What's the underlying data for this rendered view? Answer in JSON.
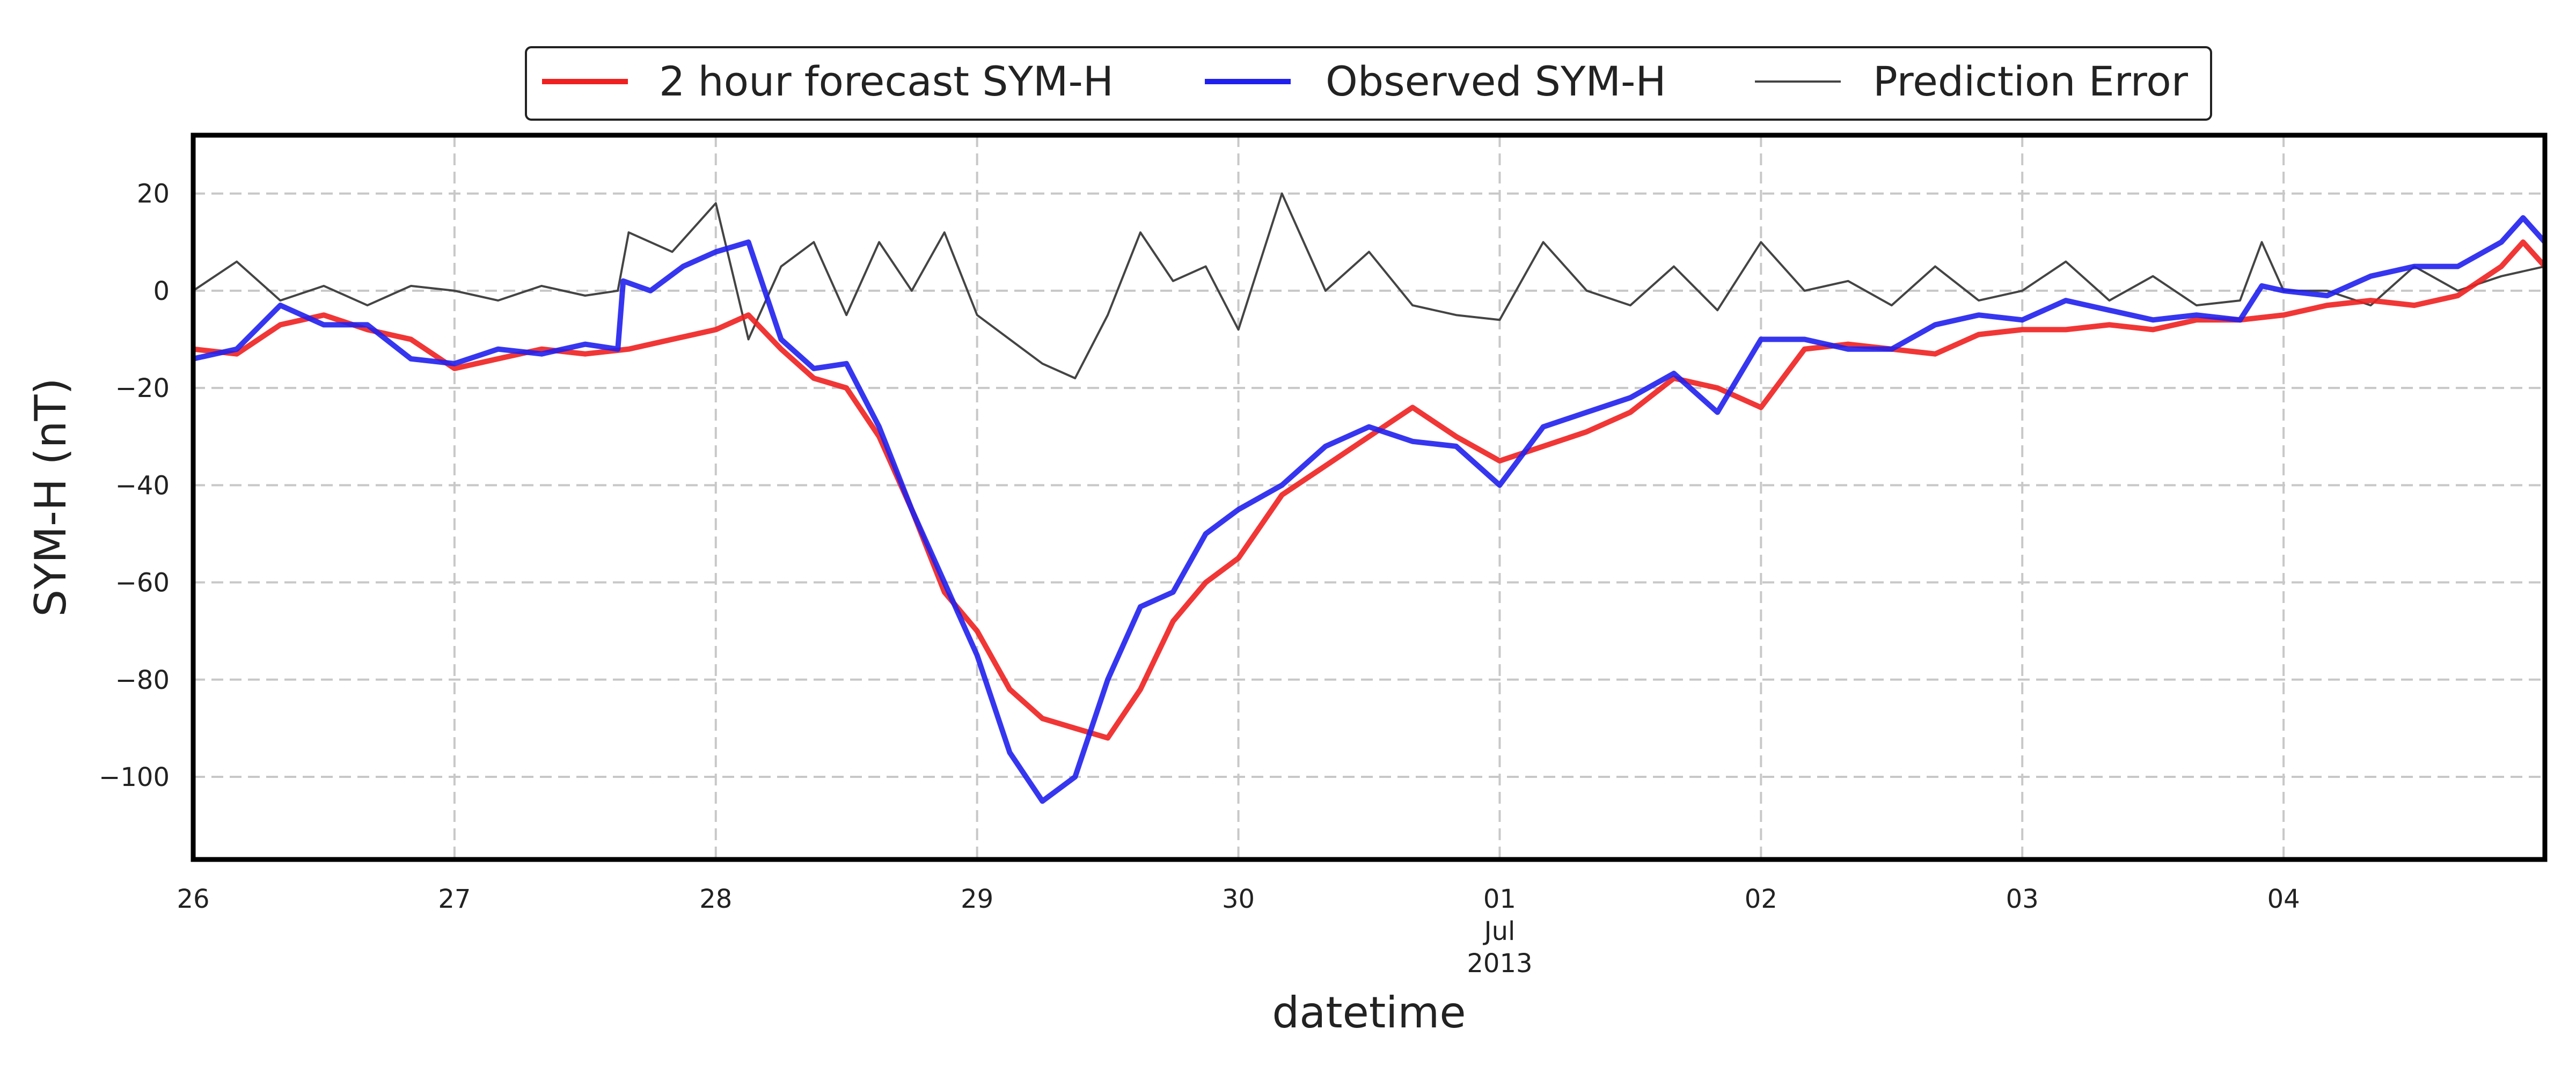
{
  "chart_data": {
    "type": "line",
    "title": "",
    "xlabel": "datetime",
    "ylabel": "SYM-H (nT)",
    "xlim": [
      "2013-06-26T00:00",
      "2013-07-05T00:00"
    ],
    "ylim": [
      -117,
      32
    ],
    "grid": true,
    "legend_position": "top-center",
    "x_ticks": [
      {
        "date": "2013-06-26",
        "label": "26"
      },
      {
        "date": "2013-06-27",
        "label": "27"
      },
      {
        "date": "2013-06-28",
        "label": "28"
      },
      {
        "date": "2013-06-29",
        "label": "29"
      },
      {
        "date": "2013-06-30",
        "label": "30"
      },
      {
        "date": "2013-07-01",
        "label": "01"
      },
      {
        "date": "2013-07-02",
        "label": "02"
      },
      {
        "date": "2013-07-03",
        "label": "03"
      },
      {
        "date": "2013-07-04",
        "label": "04"
      }
    ],
    "x_sublabels": {
      "date": "2013-07-01",
      "month": "Jul",
      "year": "2013"
    },
    "y_ticks": [
      20,
      0,
      -20,
      -40,
      -60,
      -80,
      -100
    ],
    "y_tick_labels": [
      "20",
      "0",
      "−20",
      "−40",
      "−60",
      "−80",
      "−100"
    ],
    "series": [
      {
        "name": "2 hour forecast SYM-H",
        "color": "#ef2020",
        "x": [
          "2013-06-26T00:00",
          "2013-06-26T04:00",
          "2013-06-26T08:00",
          "2013-06-26T12:00",
          "2013-06-26T16:00",
          "2013-06-26T20:00",
          "2013-06-27T00:00",
          "2013-06-27T04:00",
          "2013-06-27T08:00",
          "2013-06-27T12:00",
          "2013-06-27T16:00",
          "2013-06-27T20:00",
          "2013-06-28T00:00",
          "2013-06-28T03:00",
          "2013-06-28T06:00",
          "2013-06-28T09:00",
          "2013-06-28T12:00",
          "2013-06-28T15:00",
          "2013-06-28T18:00",
          "2013-06-28T21:00",
          "2013-06-29T00:00",
          "2013-06-29T03:00",
          "2013-06-29T06:00",
          "2013-06-29T09:00",
          "2013-06-29T12:00",
          "2013-06-29T15:00",
          "2013-06-29T18:00",
          "2013-06-29T21:00",
          "2013-06-30T00:00",
          "2013-06-30T04:00",
          "2013-06-30T08:00",
          "2013-06-30T12:00",
          "2013-06-30T16:00",
          "2013-06-30T20:00",
          "2013-07-01T00:00",
          "2013-07-01T04:00",
          "2013-07-01T08:00",
          "2013-07-01T12:00",
          "2013-07-01T16:00",
          "2013-07-01T20:00",
          "2013-07-02T00:00",
          "2013-07-02T04:00",
          "2013-07-02T08:00",
          "2013-07-02T12:00",
          "2013-07-02T16:00",
          "2013-07-02T20:00",
          "2013-07-03T00:00",
          "2013-07-03T04:00",
          "2013-07-03T08:00",
          "2013-07-03T12:00",
          "2013-07-03T16:00",
          "2013-07-03T20:00",
          "2013-07-04T00:00",
          "2013-07-04T04:00",
          "2013-07-04T08:00",
          "2013-07-04T12:00",
          "2013-07-04T16:00",
          "2013-07-04T20:00",
          "2013-07-04T22:00",
          "2013-07-05T00:00"
        ],
        "values": [
          -12,
          -13,
          -7,
          -5,
          -8,
          -10,
          -16,
          -14,
          -12,
          -13,
          -12,
          -10,
          -8,
          -5,
          -12,
          -18,
          -20,
          -30,
          -45,
          -62,
          -70,
          -82,
          -88,
          -90,
          -92,
          -82,
          -68,
          -60,
          -55,
          -42,
          -36,
          -30,
          -24,
          -30,
          -35,
          -32,
          -29,
          -25,
          -18,
          -20,
          -24,
          -12,
          -11,
          -12,
          -13,
          -9,
          -8,
          -8,
          -7,
          -8,
          -6,
          -6,
          -5,
          -3,
          -2,
          -3,
          -1,
          5,
          10,
          5
        ]
      },
      {
        "name": "Observed SYM-H",
        "color": "#2020ee",
        "x": [
          "2013-06-26T00:00",
          "2013-06-26T04:00",
          "2013-06-26T08:00",
          "2013-06-26T12:00",
          "2013-06-26T16:00",
          "2013-06-26T20:00",
          "2013-06-27T00:00",
          "2013-06-27T04:00",
          "2013-06-27T08:00",
          "2013-06-27T12:00",
          "2013-06-27T15:00",
          "2013-06-27T15:30",
          "2013-06-27T18:00",
          "2013-06-27T21:00",
          "2013-06-28T00:00",
          "2013-06-28T03:00",
          "2013-06-28T06:00",
          "2013-06-28T09:00",
          "2013-06-28T12:00",
          "2013-06-28T15:00",
          "2013-06-28T18:00",
          "2013-06-28T21:00",
          "2013-06-29T00:00",
          "2013-06-29T03:00",
          "2013-06-29T06:00",
          "2013-06-29T09:00",
          "2013-06-29T12:00",
          "2013-06-29T15:00",
          "2013-06-29T18:00",
          "2013-06-29T21:00",
          "2013-06-30T00:00",
          "2013-06-30T04:00",
          "2013-06-30T08:00",
          "2013-06-30T12:00",
          "2013-06-30T16:00",
          "2013-06-30T20:00",
          "2013-07-01T00:00",
          "2013-07-01T04:00",
          "2013-07-01T08:00",
          "2013-07-01T12:00",
          "2013-07-01T16:00",
          "2013-07-01T20:00",
          "2013-07-02T00:00",
          "2013-07-02T04:00",
          "2013-07-02T08:00",
          "2013-07-02T12:00",
          "2013-07-02T16:00",
          "2013-07-02T20:00",
          "2013-07-03T00:00",
          "2013-07-03T04:00",
          "2013-07-03T08:00",
          "2013-07-03T12:00",
          "2013-07-03T16:00",
          "2013-07-03T20:00",
          "2013-07-03T22:00",
          "2013-07-04T00:00",
          "2013-07-04T04:00",
          "2013-07-04T08:00",
          "2013-07-04T12:00",
          "2013-07-04T16:00",
          "2013-07-04T20:00",
          "2013-07-04T22:00",
          "2013-07-05T00:00"
        ],
        "values": [
          -14,
          -12,
          -3,
          -7,
          -7,
          -14,
          -15,
          -12,
          -13,
          -11,
          -12,
          2,
          0,
          5,
          8,
          10,
          -10,
          -16,
          -15,
          -28,
          -45,
          -60,
          -75,
          -95,
          -105,
          -100,
          -80,
          -65,
          -62,
          -50,
          -45,
          -40,
          -32,
          -28,
          -31,
          -32,
          -40,
          -28,
          -25,
          -22,
          -17,
          -25,
          -10,
          -10,
          -12,
          -12,
          -7,
          -5,
          -6,
          -2,
          -4,
          -6,
          -5,
          -6,
          1,
          0,
          -1,
          3,
          5,
          5,
          10,
          15,
          10
        ]
      },
      {
        "name": "Prediction Error",
        "color": "#444444",
        "x": [
          "2013-06-26T00:00",
          "2013-06-26T04:00",
          "2013-06-26T08:00",
          "2013-06-26T12:00",
          "2013-06-26T16:00",
          "2013-06-26T20:00",
          "2013-06-27T00:00",
          "2013-06-27T04:00",
          "2013-06-27T08:00",
          "2013-06-27T12:00",
          "2013-06-27T15:00",
          "2013-06-27T16:00",
          "2013-06-27T20:00",
          "2013-06-28T00:00",
          "2013-06-28T03:00",
          "2013-06-28T06:00",
          "2013-06-28T09:00",
          "2013-06-28T12:00",
          "2013-06-28T15:00",
          "2013-06-28T18:00",
          "2013-06-28T21:00",
          "2013-06-29T00:00",
          "2013-06-29T03:00",
          "2013-06-29T06:00",
          "2013-06-29T09:00",
          "2013-06-29T12:00",
          "2013-06-29T15:00",
          "2013-06-29T18:00",
          "2013-06-29T21:00",
          "2013-06-30T00:00",
          "2013-06-30T04:00",
          "2013-06-30T08:00",
          "2013-06-30T12:00",
          "2013-06-30T16:00",
          "2013-06-30T20:00",
          "2013-07-01T00:00",
          "2013-07-01T04:00",
          "2013-07-01T08:00",
          "2013-07-01T12:00",
          "2013-07-01T16:00",
          "2013-07-01T20:00",
          "2013-07-02T00:00",
          "2013-07-02T04:00",
          "2013-07-02T08:00",
          "2013-07-02T12:00",
          "2013-07-02T16:00",
          "2013-07-02T20:00",
          "2013-07-03T00:00",
          "2013-07-03T04:00",
          "2013-07-03T08:00",
          "2013-07-03T12:00",
          "2013-07-03T16:00",
          "2013-07-03T20:00",
          "2013-07-03T22:00",
          "2013-07-04T00:00",
          "2013-07-04T04:00",
          "2013-07-04T08:00",
          "2013-07-04T12:00",
          "2013-07-04T16:00",
          "2013-07-04T20:00",
          "2013-07-05T00:00"
        ],
        "values": [
          0,
          6,
          -2,
          1,
          -3,
          1,
          0,
          -2,
          1,
          -1,
          0,
          12,
          8,
          18,
          -10,
          5,
          10,
          -5,
          10,
          0,
          12,
          -5,
          -10,
          -15,
          -18,
          -5,
          12,
          2,
          5,
          -8,
          20,
          0,
          8,
          -3,
          -5,
          -6,
          10,
          0,
          -3,
          5,
          -4,
          10,
          0,
          2,
          -3,
          5,
          -2,
          0,
          6,
          -2,
          3,
          -3,
          -2,
          10,
          0,
          0,
          -3,
          5,
          0,
          3,
          5
        ]
      }
    ]
  }
}
